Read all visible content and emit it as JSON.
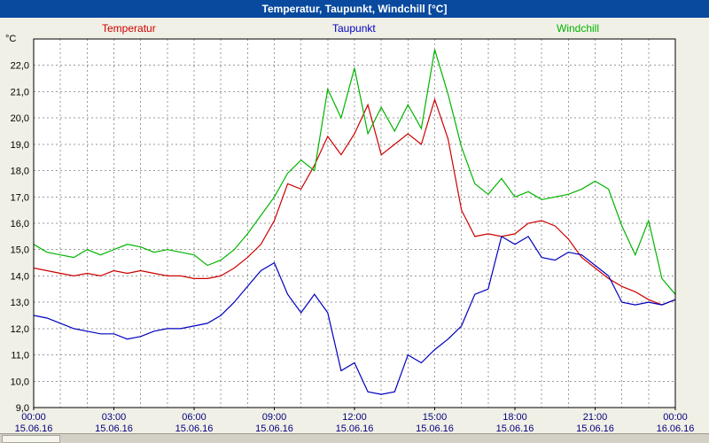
{
  "window": {
    "title": "Temperatur, Taupunkt, Windchill [°C]"
  },
  "colors": {
    "titlebar": "#0a4a9e",
    "window_bg": "#f1f0e6",
    "plot_bg": "#ffffff",
    "grid": "#9a9a9a",
    "border": "#000000",
    "x_label": "#000080",
    "y_label": "#000000"
  },
  "legend": {
    "items": [
      {
        "label": "Temperatur",
        "color": "#cc0000"
      },
      {
        "label": "Taupunkt",
        "color": "#0000c0"
      },
      {
        "label": "Windchill",
        "color": "#00b400"
      }
    ]
  },
  "chart_data": {
    "type": "line",
    "title": "Temperatur, Taupunkt, Windchill [°C]",
    "x_unit": "hours",
    "xlim": [
      0,
      24
    ],
    "ylim": [
      9,
      23
    ],
    "y_unit_label": "°C",
    "grid": {
      "style": "dashed",
      "x_interval_hours": 1,
      "y_interval_deg": 1
    },
    "legend_position": "top",
    "x": [
      0,
      0.5,
      1,
      1.5,
      2,
      2.5,
      3,
      3.5,
      4,
      4.5,
      5,
      5.5,
      6,
      6.5,
      7,
      7.5,
      8,
      8.5,
      9,
      9.5,
      10,
      10.5,
      11,
      11.5,
      12,
      12.5,
      13,
      13.5,
      14,
      14.5,
      15,
      15.5,
      16,
      16.5,
      17,
      17.5,
      18,
      18.5,
      19,
      19.5,
      20,
      20.5,
      21,
      21.5,
      22,
      22.5,
      23,
      23.5,
      24
    ],
    "series": [
      {
        "name": "Temperatur",
        "color": "#cc0000",
        "values": [
          14.3,
          14.2,
          14.1,
          14.0,
          14.1,
          14.0,
          14.2,
          14.1,
          14.2,
          14.1,
          14.0,
          14.0,
          13.9,
          13.9,
          14.0,
          14.3,
          14.7,
          15.2,
          16.1,
          17.5,
          17.3,
          18.2,
          19.3,
          18.6,
          19.4,
          20.5,
          18.6,
          19.0,
          19.4,
          19.0,
          20.7,
          19.2,
          16.5,
          15.5,
          15.6,
          15.5,
          15.6,
          16.0,
          16.1,
          15.9,
          15.4,
          14.7,
          14.3,
          13.9,
          13.6,
          13.4,
          13.1,
          12.9,
          13.1
        ]
      },
      {
        "name": "Taupunkt",
        "color": "#0000c0",
        "values": [
          12.5,
          12.4,
          12.2,
          12.0,
          11.9,
          11.8,
          11.8,
          11.6,
          11.7,
          11.9,
          12.0,
          12.0,
          12.1,
          12.2,
          12.5,
          13.0,
          13.6,
          14.2,
          14.5,
          13.3,
          12.6,
          13.3,
          12.6,
          10.4,
          10.7,
          9.6,
          9.5,
          9.6,
          11.0,
          10.7,
          11.2,
          11.6,
          12.1,
          13.3,
          13.5,
          15.5,
          15.2,
          15.5,
          14.7,
          14.6,
          14.9,
          14.8,
          14.4,
          14.0,
          13.0,
          12.9,
          13.0,
          12.9,
          13.1
        ]
      },
      {
        "name": "Windchill",
        "color": "#00b400",
        "values": [
          15.2,
          14.9,
          14.8,
          14.7,
          15.0,
          14.8,
          15.0,
          15.2,
          15.1,
          14.9,
          15.0,
          14.9,
          14.8,
          14.4,
          14.6,
          15.0,
          15.6,
          16.3,
          17.0,
          17.9,
          18.4,
          18.0,
          21.1,
          20.0,
          21.9,
          19.4,
          20.4,
          19.5,
          20.5,
          19.6,
          22.6,
          20.9,
          18.9,
          17.5,
          17.1,
          17.7,
          17.0,
          17.2,
          16.9,
          17.0,
          17.1,
          17.3,
          17.6,
          17.3,
          15.9,
          14.8,
          16.1,
          13.9,
          13.3
        ]
      }
    ],
    "y_ticks": {
      "values": [
        22,
        21,
        20,
        19,
        18,
        17,
        16,
        15,
        14,
        13,
        12,
        11,
        10,
        9
      ],
      "labels": [
        "22,0",
        "21,0",
        "20,0",
        "19,0",
        "18,0",
        "17,0",
        "16,0",
        "15,0",
        "14,0",
        "13,0",
        "12,0",
        "11,0",
        "10,0",
        "9,0"
      ]
    },
    "x_ticks": [
      {
        "hour": 0,
        "time": "00:00",
        "date": "15.06.16"
      },
      {
        "hour": 3,
        "time": "03:00",
        "date": "15.06.16"
      },
      {
        "hour": 6,
        "time": "06:00",
        "date": "15.06.16"
      },
      {
        "hour": 9,
        "time": "09:00",
        "date": "15.06.16"
      },
      {
        "hour": 12,
        "time": "12:00",
        "date": "15.06.16"
      },
      {
        "hour": 15,
        "time": "15:00",
        "date": "15.06.16"
      },
      {
        "hour": 18,
        "time": "18:00",
        "date": "15.06.16"
      },
      {
        "hour": 21,
        "time": "21:00",
        "date": "15.06.16"
      },
      {
        "hour": 24,
        "time": "00:00",
        "date": "16.06.16"
      }
    ]
  }
}
